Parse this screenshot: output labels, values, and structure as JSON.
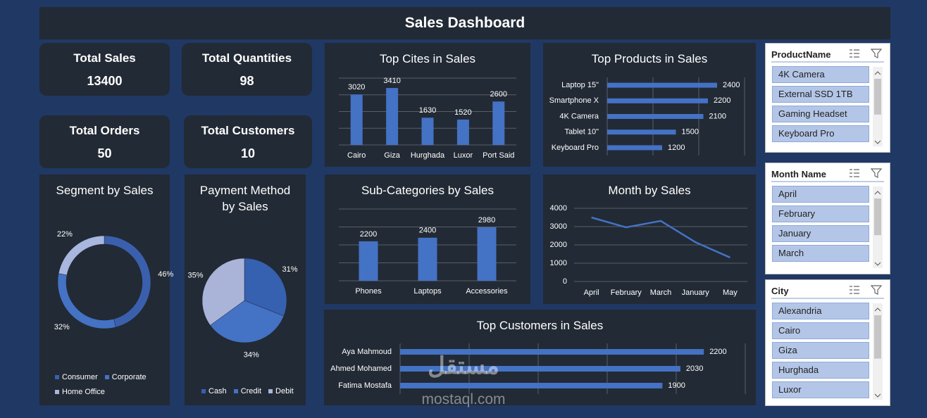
{
  "header": {
    "title": "Sales Dashboard"
  },
  "kpis": [
    {
      "label": "Total Sales",
      "value": 13400
    },
    {
      "label": "Total Quantities",
      "value": 98
    },
    {
      "label": "Total Orders",
      "value": 50
    },
    {
      "label": "Total Customers",
      "value": 10
    }
  ],
  "chart_data": [
    {
      "type": "bar",
      "title": "Top Cites in Sales",
      "categories": [
        "Cairo",
        "Giza",
        "Hurghada",
        "Luxor",
        "Port Said"
      ],
      "values": [
        3020,
        3410,
        1630,
        1520,
        2600
      ],
      "color": "#4472c4",
      "ylim": [
        0,
        4000
      ],
      "yticks": [
        0,
        1000,
        2000,
        3000,
        4000
      ],
      "grid": true,
      "tick_labels": false
    },
    {
      "type": "bar",
      "orientation": "horizontal",
      "title": "Top Products in Sales",
      "categories": [
        "Laptop 15\"",
        "Smartphone X",
        "4K Camera",
        "Tablet 10\"",
        "Keyboard Pro"
      ],
      "values": [
        2400,
        2200,
        2100,
        1500,
        1200
      ],
      "color": "#4472c4",
      "xlim": [
        0,
        3000
      ],
      "xticks": [
        0,
        1000,
        2000,
        3000
      ],
      "grid": true,
      "tick_labels": false
    },
    {
      "type": "bar",
      "title": "Sub-Categories by Sales",
      "categories": [
        "Phones",
        "Laptops",
        "Accessories"
      ],
      "values": [
        2200,
        2400,
        2980
      ],
      "color": "#4472c4",
      "ylim": [
        0,
        4000
      ],
      "yticks": [
        0,
        1000,
        2000,
        3000,
        4000
      ],
      "grid": true,
      "tick_labels": false
    },
    {
      "type": "line",
      "title": "Month by Sales",
      "categories": [
        "April",
        "February",
        "March",
        "January",
        "May"
      ],
      "values": [
        3500,
        2960,
        3310,
        2150,
        1310
      ],
      "color": "#4472c4",
      "ylim": [
        0,
        4000
      ],
      "yticks": [
        0,
        1000,
        2000,
        3000,
        4000
      ],
      "grid": true,
      "tick_labels": true
    },
    {
      "type": "bar",
      "orientation": "horizontal",
      "title": "Top Customers in Sales",
      "categories": [
        "Aya Mahmoud",
        "Ahmed Mohamed",
        "Fatima Mostafa"
      ],
      "values": [
        2200,
        2030,
        1900
      ],
      "color": "#4472c4",
      "xlim": [
        0,
        2500
      ],
      "xticks": [
        0,
        500,
        1000,
        1500,
        2000,
        2500
      ],
      "grid": true,
      "tick_labels": false
    },
    {
      "type": "donut",
      "title": "Segment by Sales",
      "categories": [
        "Consumer",
        "Corporate",
        "Home Office"
      ],
      "values": [
        46,
        32,
        22
      ],
      "value_labels": [
        "46%",
        "32%",
        "22%"
      ],
      "colors": [
        "#3a60ad",
        "#4472c4",
        "#a9b6de"
      ],
      "legend": "bottom"
    },
    {
      "type": "pie",
      "title": "Payment Method by Sales",
      "categories": [
        "Cash",
        "Credit",
        "Debit"
      ],
      "values": [
        31,
        34,
        35
      ],
      "value_labels": [
        "31%",
        "34%",
        "35%"
      ],
      "colors": [
        "#3660b0",
        "#4472c4",
        "#a9b4d8"
      ],
      "legend": "bottom"
    }
  ],
  "slicers": [
    {
      "title": "ProductName",
      "items": [
        "4K Camera",
        "External SSD 1TB",
        "Gaming Headset",
        "Keyboard Pro"
      ]
    },
    {
      "title": "Month Name",
      "items": [
        "April",
        "February",
        "January",
        "March"
      ]
    },
    {
      "title": "City",
      "items": [
        "Alexandria",
        "Cairo",
        "Giza",
        "Hurghada",
        "Luxor"
      ]
    }
  ],
  "watermark": {
    "logo": "مستقل",
    "text": "mostaql.com"
  }
}
